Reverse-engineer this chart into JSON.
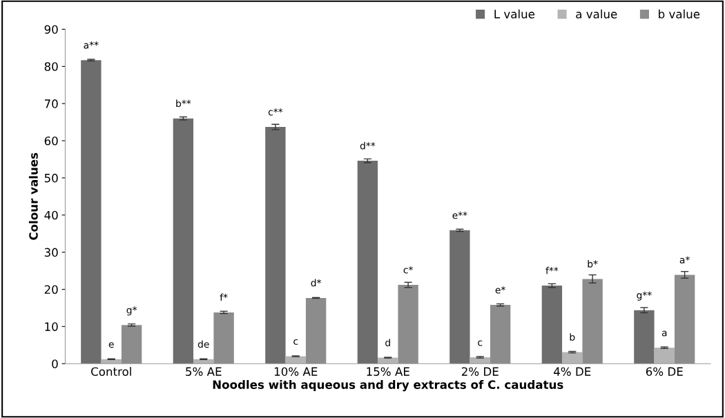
{
  "chart_data": {
    "type": "bar",
    "xlabel": "Noodles with aqueous and dry extracts of C. caudatus",
    "ylabel": "Colour values",
    "categories": [
      "Control",
      "5% AE",
      "10% AE",
      "15% AE",
      "2% DE",
      "4% DE",
      "6% DE"
    ],
    "series": [
      {
        "name": "L value",
        "color": "#6d6d6d",
        "values": [
          81.7,
          66.0,
          63.7,
          54.6,
          35.9,
          21.0,
          14.4
        ],
        "errors": [
          0.2,
          0.4,
          0.7,
          0.5,
          0.3,
          0.5,
          0.7
        ],
        "value_labels": [
          "a**",
          "b**",
          "c**",
          "d**",
          "e**",
          "f**",
          "g**"
        ]
      },
      {
        "name": "a value",
        "color": "#b4b4b4",
        "values": [
          1.2,
          1.2,
          2.0,
          1.6,
          1.7,
          3.1,
          4.3
        ],
        "errors": [
          0.1,
          0.1,
          0.1,
          0.1,
          0.2,
          0.2,
          0.2
        ],
        "value_labels": [
          "e",
          "de",
          "c",
          "d",
          "c",
          "b",
          "a"
        ]
      },
      {
        "name": "b value",
        "color": "#8c8c8c",
        "values": [
          10.4,
          13.8,
          17.7,
          21.2,
          15.8,
          22.8,
          23.9
        ],
        "errors": [
          0.3,
          0.3,
          0.1,
          0.7,
          0.3,
          1.1,
          0.9
        ],
        "value_labels": [
          "g*",
          "f*",
          "d*",
          "c*",
          "e*",
          "b*",
          "a*"
        ]
      }
    ],
    "ylim": [
      0,
      90
    ],
    "yticks": [
      0,
      10,
      20,
      30,
      40,
      50,
      60,
      70,
      80,
      90
    ],
    "legend": "top right"
  }
}
